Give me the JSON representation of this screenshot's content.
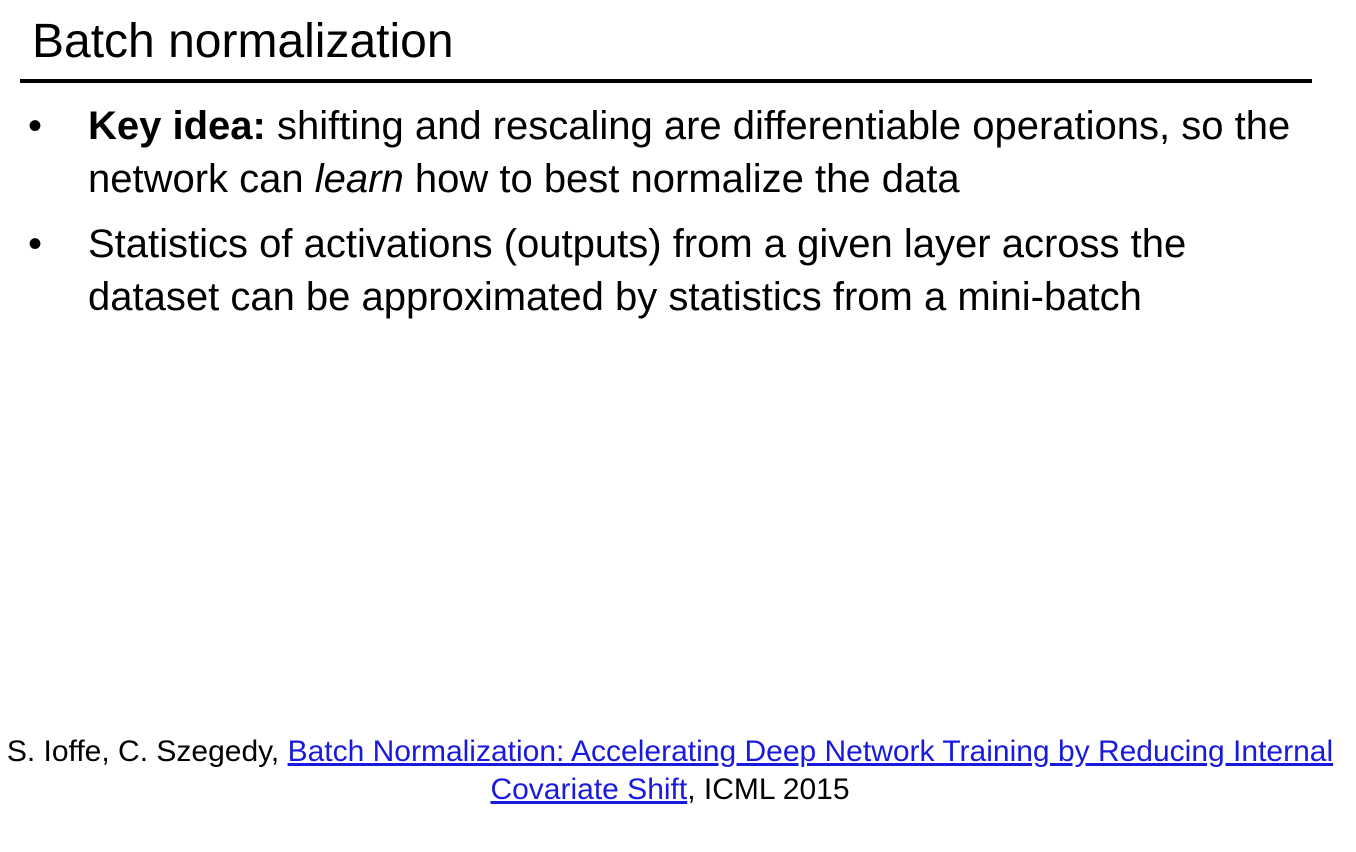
{
  "slide": {
    "title": "Batch normalization"
  },
  "bullets": [
    {
      "marker": "•",
      "bold_lead": "Key idea:",
      "text_before_em": " shifting and rescaling are differentiable operations, so the network can ",
      "emphasis": "learn",
      "text_after_em": " how to best normalize the data"
    },
    {
      "marker": "•",
      "text": "Statistics of activations (outputs) from a given layer across the dataset can be approximated by statistics from a mini-batch"
    }
  ],
  "citation": {
    "authors": "S. Ioffe, C. Szegedy, ",
    "link_text": "Batch Normalization: Accelerating Deep Network Training by Reducing Internal Covariate Shift",
    "venue": ", ICML 2015",
    "link_color": "#1a1adf"
  }
}
